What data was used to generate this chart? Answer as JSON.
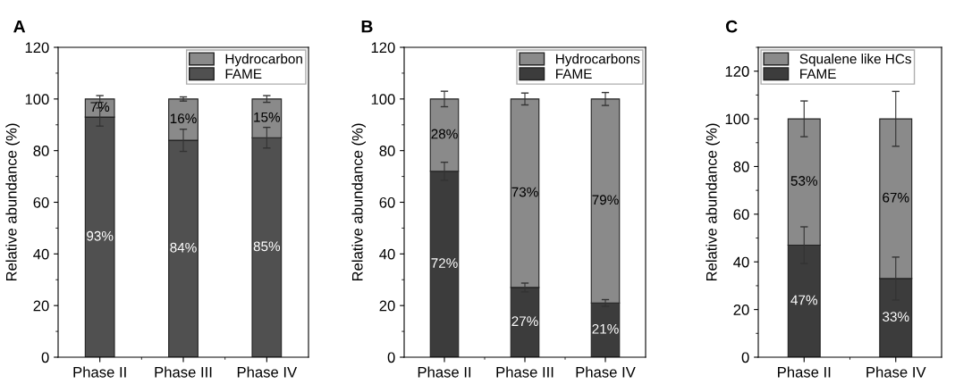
{
  "chart_data": [
    {
      "type": "bar",
      "title": "A",
      "ylabel": "Relative abundance (%)",
      "categories": [
        "Phase II",
        "Phase III",
        "Phase IV"
      ],
      "stacked": true,
      "ylim": [
        0,
        120
      ],
      "yticks": [
        0,
        20,
        40,
        60,
        80,
        100,
        120
      ],
      "legend": "top right",
      "grid": false,
      "series": [
        {
          "name": "FAME",
          "color": "#505050",
          "values": [
            93,
            84,
            85
          ],
          "errors": [
            3.5,
            4.3,
            4
          ],
          "value_labels": [
            "93%",
            "84%",
            "85%"
          ]
        },
        {
          "name": "Hydrocarbon",
          "color": "#8a8a8a",
          "values": [
            7,
            16,
            15
          ],
          "errors": [
            1.3,
            0.8,
            1.3
          ],
          "value_labels": [
            "7%",
            "16%",
            "15%"
          ]
        }
      ]
    },
    {
      "type": "bar",
      "title": "B",
      "ylabel": "Relative abundance (%)",
      "categories": [
        "Phase II",
        "Phase III",
        "Phase IV"
      ],
      "stacked": true,
      "ylim": [
        0,
        120
      ],
      "yticks": [
        0,
        20,
        40,
        60,
        80,
        100,
        120
      ],
      "legend": "top right",
      "grid": false,
      "series": [
        {
          "name": "FAME",
          "color": "#3c3c3c",
          "values": [
            72,
            27,
            21
          ],
          "errors": [
            3.5,
            1.7,
            1.3
          ],
          "value_labels": [
            "72%",
            "27%",
            "21%"
          ]
        },
        {
          "name": "Hydrocarbons",
          "color": "#8a8a8a",
          "values": [
            28,
            73,
            79
          ],
          "errors": [
            3,
            2.3,
            2.5
          ],
          "value_labels": [
            "28%",
            "73%",
            "79%"
          ]
        }
      ]
    },
    {
      "type": "bar",
      "title": "C",
      "ylabel": "Relative abundance (%)",
      "categories": [
        "Phase II",
        "Phase IV"
      ],
      "stacked": true,
      "ylim": [
        0,
        130
      ],
      "yticks": [
        0,
        20,
        40,
        60,
        80,
        100,
        120
      ],
      "legend": "top left",
      "grid": false,
      "series": [
        {
          "name": "FAME",
          "color": "#3c3c3c",
          "values": [
            47,
            33
          ],
          "errors": [
            7.7,
            9
          ],
          "value_labels": [
            "47%",
            "33%"
          ]
        },
        {
          "name": "Squalene like HCs",
          "color": "#8a8a8a",
          "values": [
            53,
            67
          ],
          "errors": [
            7.5,
            11.5
          ],
          "value_labels": [
            "53%",
            "67%"
          ]
        }
      ]
    }
  ]
}
